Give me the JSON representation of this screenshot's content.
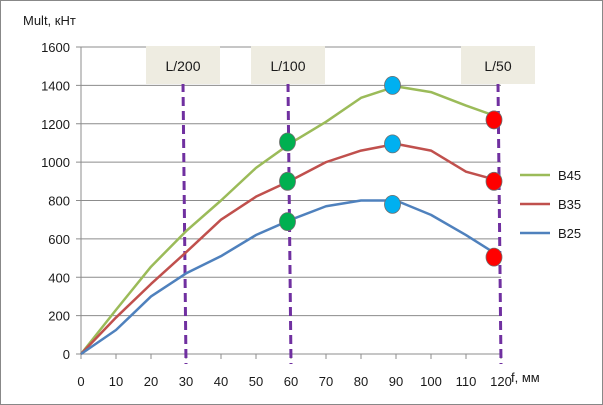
{
  "chart_data": {
    "type": "line",
    "ylabel": "Mult, кНт",
    "xlabel": "f, мм",
    "xlim": [
      0,
      120
    ],
    "ylim": [
      0,
      1600
    ],
    "x_ticks": [
      0,
      10,
      20,
      30,
      40,
      50,
      60,
      70,
      80,
      90,
      100,
      110,
      120
    ],
    "y_ticks": [
      0,
      200,
      400,
      600,
      800,
      1000,
      1200,
      1400,
      1600
    ],
    "grid": "horizontal",
    "legend_position": "right",
    "series": [
      {
        "name": "B45",
        "color": "#9bbb59",
        "x": [
          0,
          10,
          20,
          30,
          40,
          50,
          60,
          70,
          80,
          90,
          100,
          110,
          120
        ],
        "values": [
          0,
          230,
          455,
          640,
          800,
          970,
          1100,
          1210,
          1335,
          1395,
          1365,
          1295,
          1230
        ]
      },
      {
        "name": "B35",
        "color": "#c0504d",
        "x": [
          0,
          10,
          20,
          30,
          40,
          50,
          60,
          70,
          80,
          90,
          100,
          110,
          120
        ],
        "values": [
          0,
          190,
          365,
          530,
          700,
          820,
          905,
          1000,
          1060,
          1095,
          1060,
          950,
          900
        ]
      },
      {
        "name": "B25",
        "color": "#4f81bd",
        "x": [
          0,
          10,
          20,
          30,
          40,
          50,
          60,
          70,
          80,
          90,
          100,
          110,
          120
        ],
        "values": [
          0,
          125,
          300,
          420,
          510,
          620,
          700,
          770,
          800,
          800,
          725,
          620,
          505
        ]
      }
    ],
    "limit_lines": [
      {
        "label": "L/200",
        "x": 30
      },
      {
        "label": "L/100",
        "x": 60
      },
      {
        "label": "L/50",
        "x": 120
      }
    ],
    "markers": [
      {
        "x": 59,
        "y": 1105,
        "color": "#00b050"
      },
      {
        "x": 59,
        "y": 900,
        "color": "#00b050"
      },
      {
        "x": 59,
        "y": 690,
        "color": "#00b050"
      },
      {
        "x": 89,
        "y": 1400,
        "color": "#00b0f0"
      },
      {
        "x": 89,
        "y": 1095,
        "color": "#00b0f0"
      },
      {
        "x": 89,
        "y": 780,
        "color": "#00b0f0"
      },
      {
        "x": 118,
        "y": 1220,
        "color": "#ff0000"
      },
      {
        "x": 118,
        "y": 900,
        "color": "#ff0000"
      },
      {
        "x": 118,
        "y": 505,
        "color": "#ff0000"
      }
    ]
  }
}
